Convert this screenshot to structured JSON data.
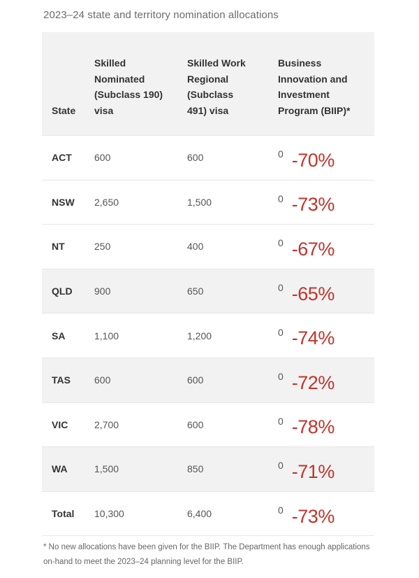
{
  "caption": "2023–24 state and territory nomination allocations",
  "headers": {
    "state": "State",
    "subclass190": "Skilled\nNominated\n(Subclass 190)\nvisa",
    "subclass491": "Skilled Work\nRegional\n(Subclass\n491) visa",
    "biip": "Business\nInnovation and\nInvestment\nProgram (BIIP)*"
  },
  "rows": [
    {
      "state": "ACT",
      "s190": "600",
      "s491": "600",
      "biip": "0",
      "pct": "-70%"
    },
    {
      "state": "NSW",
      "s190": "2,650",
      "s491": "1,500",
      "biip": "0",
      "pct": "-73%"
    },
    {
      "state": "NT",
      "s190": "250",
      "s491": "400",
      "biip": "0",
      "pct": "-67%"
    },
    {
      "state": "QLD",
      "s190": "900",
      "s491": "650",
      "biip": "0",
      "pct": "-65%"
    },
    {
      "state": "SA",
      "s190": "1,100",
      "s491": "1,200",
      "biip": "0",
      "pct": "-74%"
    },
    {
      "state": "TAS",
      "s190": "600",
      "s491": "600",
      "biip": "0",
      "pct": "-72%"
    },
    {
      "state": "VIC",
      "s190": "2,700",
      "s491": "600",
      "biip": "0",
      "pct": "-78%"
    },
    {
      "state": "WA",
      "s190": "1,500",
      "s491": "850",
      "biip": "0",
      "pct": "-71%"
    },
    {
      "state": "Total",
      "s190": "10,300",
      "s491": "6,400",
      "biip": "0",
      "pct": "-73%"
    }
  ],
  "footnote": "* No new allocations have been given for the BIIP. The Department has enough applications on-hand to meet the 2023–24 planning level for the BIIP.",
  "colors": {
    "annotation_red": "#c0342c",
    "shade": "#f2f2f2"
  }
}
